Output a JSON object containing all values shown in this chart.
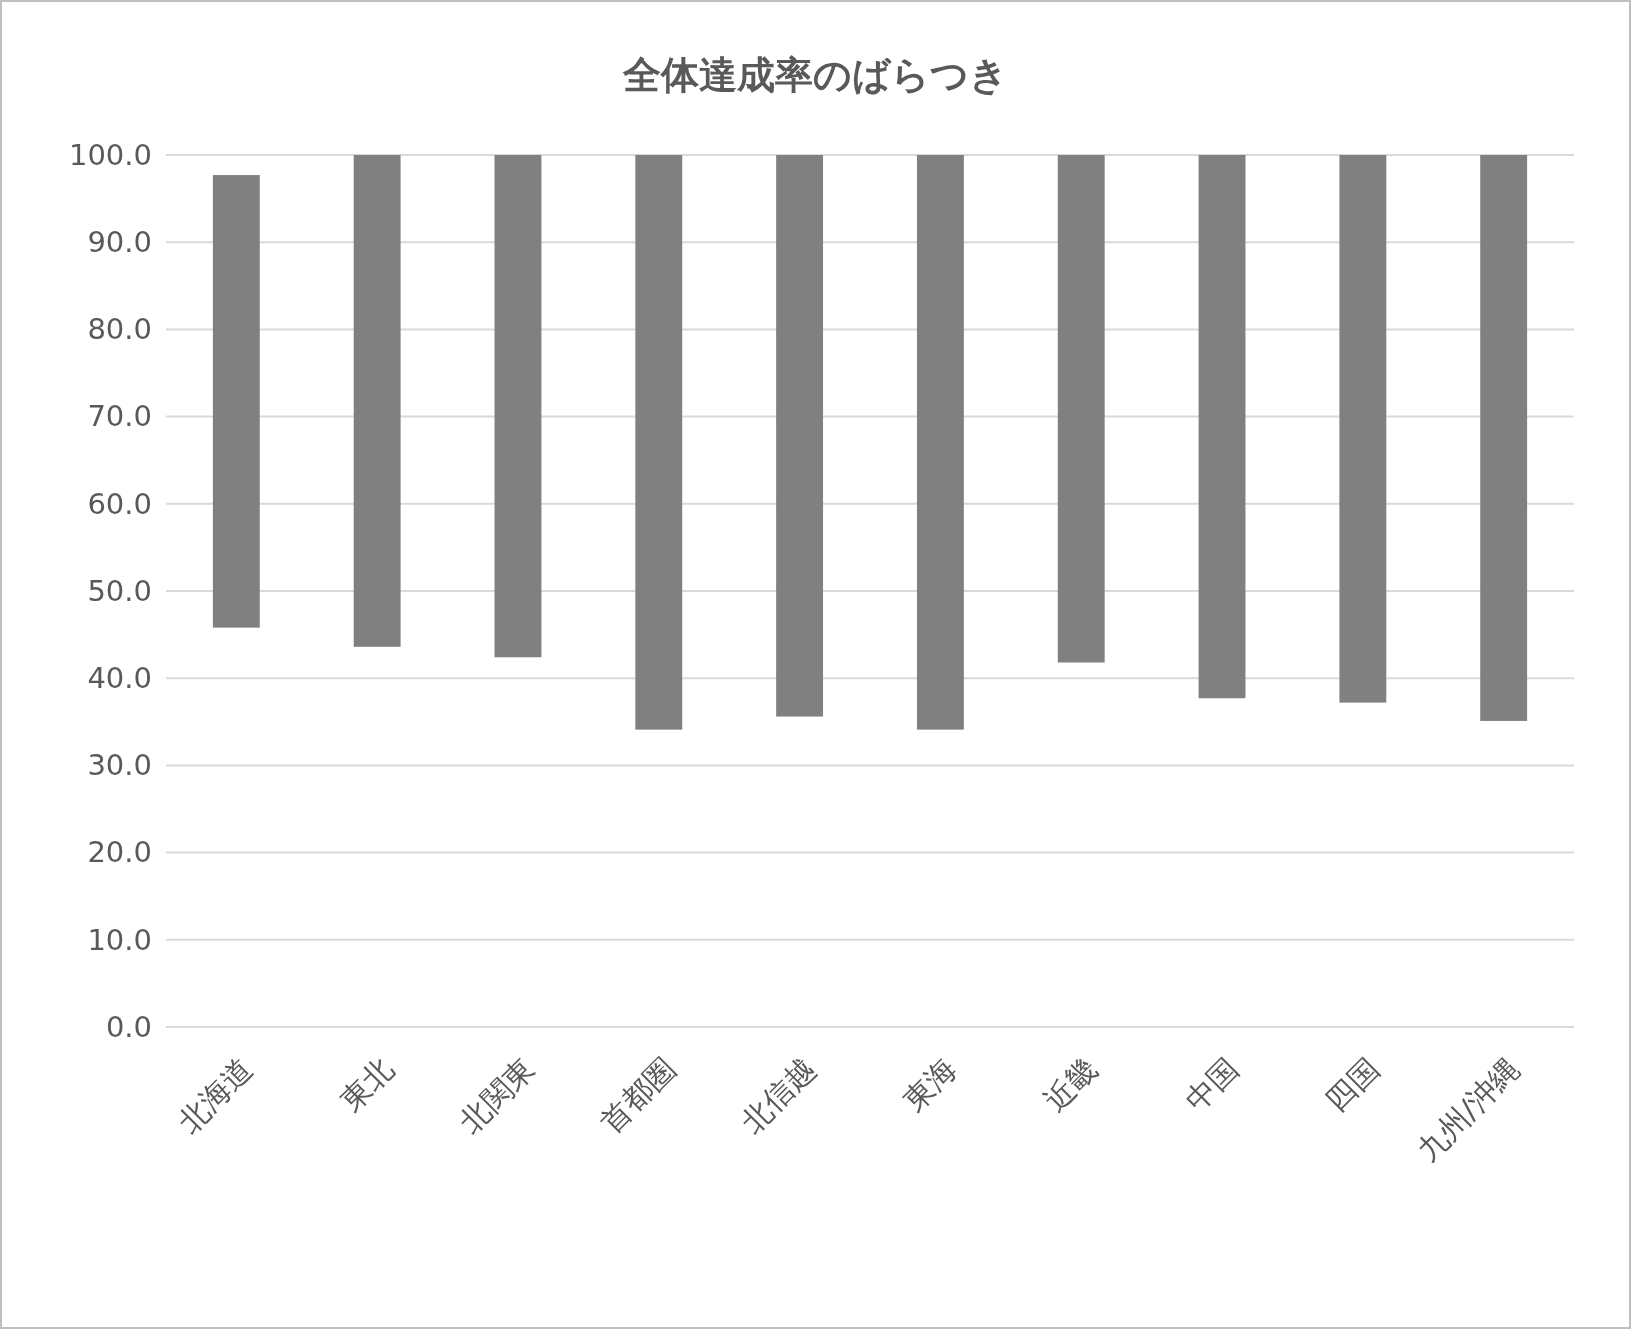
{
  "chart_data": {
    "type": "bar",
    "title": "全体達成率のばらつき",
    "categories": [
      "北海道",
      "東北",
      "北関東",
      "首都圏",
      "北信越",
      "東海",
      "近畿",
      "中国",
      "四国",
      "九州/沖縄"
    ],
    "base": [
      45.8,
      43.6,
      42.4,
      34.1,
      35.6,
      34.1,
      41.8,
      37.7,
      37.2,
      35.1
    ],
    "values": [
      51.9,
      56.4,
      57.6,
      65.9,
      64.4,
      65.9,
      58.2,
      62.3,
      62.8,
      64.9
    ],
    "color": "#808080",
    "ylim": [
      0,
      100
    ],
    "yticks": [
      {
        "value": 0,
        "label": "0.0"
      },
      {
        "value": 10,
        "label": "10.0"
      },
      {
        "value": 20,
        "label": "20.0"
      },
      {
        "value": 30,
        "label": "30.0"
      },
      {
        "value": 40,
        "label": "40.0"
      },
      {
        "value": 50,
        "label": "50.0"
      },
      {
        "value": 60,
        "label": "60.0"
      },
      {
        "value": 70,
        "label": "70.0"
      },
      {
        "value": 80,
        "label": "80.0"
      },
      {
        "value": 90,
        "label": "90.0"
      },
      {
        "value": 100,
        "label": "100.0"
      }
    ],
    "grid": "y"
  }
}
